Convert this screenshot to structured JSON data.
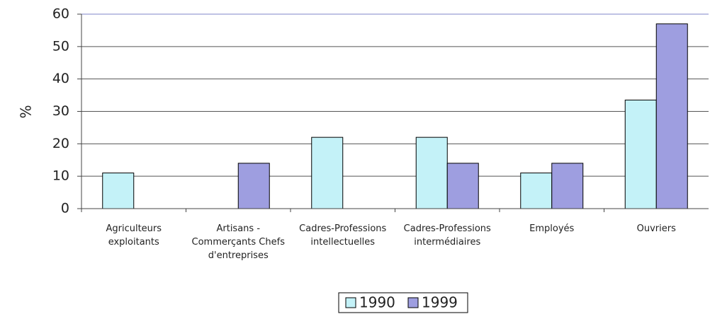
{
  "chart_data": {
    "type": "bar",
    "y_label": "%",
    "categories": [
      "Agriculteurs exploitants",
      "Artisans - Commerçants Chefs d'entreprises",
      "Cadres-Professions intellectuelles",
      "Cadres-Professions intermédiaires",
      "Employés",
      "Ouvriers"
    ],
    "series": [
      {
        "name": "1990",
        "color": "#c4f2f8",
        "values": [
          11,
          0,
          22,
          22,
          11,
          33.5
        ]
      },
      {
        "name": "1999",
        "color": "#9e9ee0",
        "values": [
          0,
          14,
          0,
          14,
          14,
          57
        ]
      }
    ],
    "ylim": [
      0,
      60
    ],
    "yticks": [
      0,
      10,
      20,
      30,
      40,
      50,
      60
    ],
    "grid": true,
    "legend": "bottom"
  }
}
